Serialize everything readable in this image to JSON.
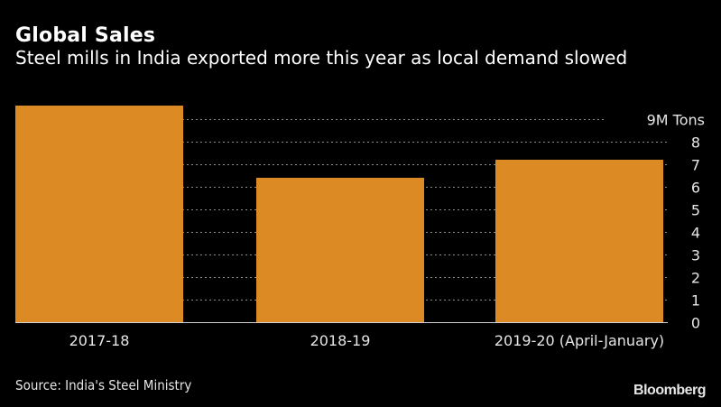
{
  "header": {
    "title": "Global Sales",
    "subtitle": "Steel mills in India exported more this year as local demand slowed"
  },
  "footer": {
    "source": "Source: India's Steel Ministry",
    "brand": "Bloomberg"
  },
  "colors": {
    "background": "#000000",
    "bar": "#dc8a24",
    "gridline": "#8c8c8c",
    "text": "#e6e6e6"
  },
  "chart_data": {
    "type": "bar",
    "title": "Global Sales",
    "subtitle": "Steel mills in India exported more this year as local demand slowed",
    "categories": [
      "2017-18",
      "2018-19",
      "2019-20 (April-January)"
    ],
    "values": [
      9.6,
      6.4,
      7.2
    ],
    "unit": "M Tons",
    "xlabel": "",
    "ylabel": "",
    "ylim": [
      0,
      9
    ],
    "yticks": [
      0,
      1,
      2,
      3,
      4,
      5,
      6,
      7,
      8,
      9
    ],
    "ytick_labels": [
      "0",
      "1",
      "2",
      "3",
      "4",
      "5",
      "6",
      "7",
      "8",
      "9M Tons"
    ],
    "y_axis_side": "right",
    "grid": true,
    "grid_style": "dotted",
    "legend": "none",
    "source": "Source: India's Steel Ministry"
  }
}
